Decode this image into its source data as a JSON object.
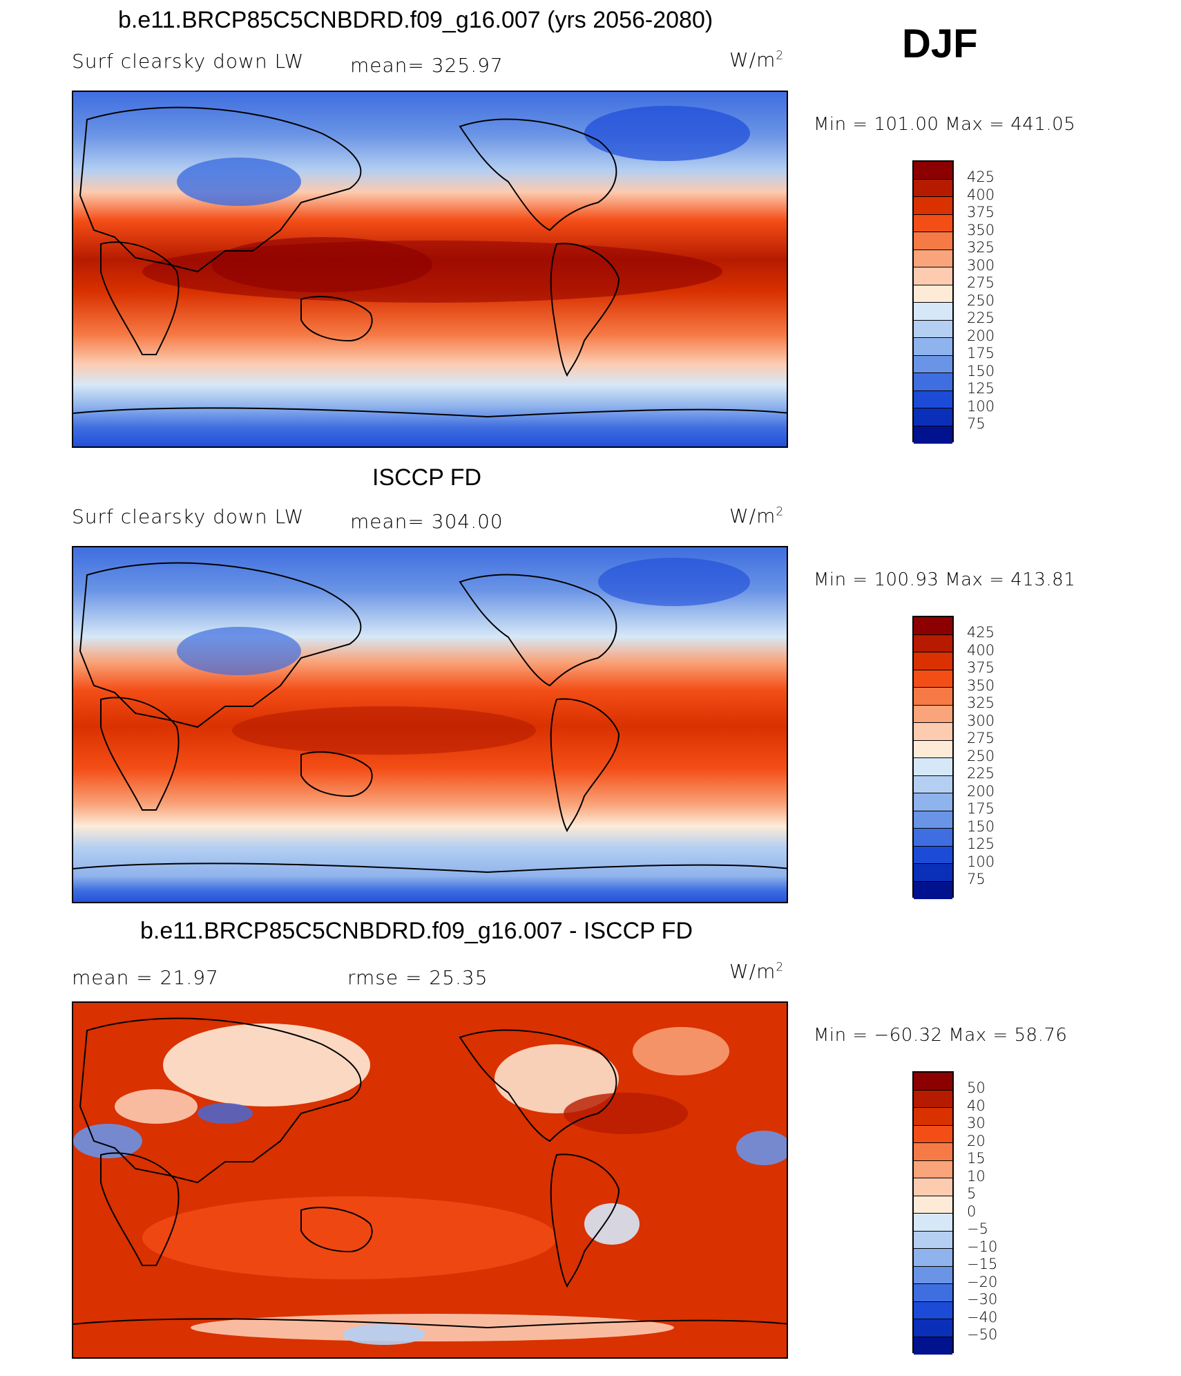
{
  "season": "DJF",
  "colors": {
    "abs_scale": [
      "#8c0000",
      "#b61b00",
      "#d93100",
      "#f44e17",
      "#f67a45",
      "#f9a47a",
      "#fccbb0",
      "#fdebd7",
      "#d6e8f7",
      "#b4cff2",
      "#8fb3ec",
      "#6a94e5",
      "#3f6ee0",
      "#1c4bd8",
      "#0a2fb8",
      "#00128e"
    ],
    "diff_scale": [
      "#8c0000",
      "#b61b00",
      "#d93100",
      "#f44e17",
      "#f67a45",
      "#f9a47a",
      "#fccbb0",
      "#fdebd7",
      "#d6e8f7",
      "#b4cff2",
      "#8fb3ec",
      "#6a94e5",
      "#3f6ee0",
      "#1c4bd8",
      "#0a2fb8",
      "#00128e"
    ]
  },
  "panels": [
    {
      "title": "b.e11.BRCP85C5CNBDRD.f09_g16.007 (yrs 2056-2080)",
      "left_label": "Surf clearsky down LW",
      "center_label": "mean= 325.97",
      "units_base": "W/m",
      "units_exp": "2",
      "minmax": "Min  =  101.00  Max  =  441.05",
      "colorbar_labels": [
        "425",
        "400",
        "375",
        "350",
        "325",
        "300",
        "275",
        "250",
        "225",
        "200",
        "175",
        "150",
        "125",
        "100",
        "75"
      ]
    },
    {
      "title": "ISCCP FD",
      "left_label": "Surf clearsky down LW",
      "center_label": "mean= 304.00",
      "units_base": "W/m",
      "units_exp": "2",
      "minmax": "Min  =  100.93  Max  =  413.81",
      "colorbar_labels": [
        "425",
        "400",
        "375",
        "350",
        "325",
        "300",
        "275",
        "250",
        "225",
        "200",
        "175",
        "150",
        "125",
        "100",
        "75"
      ]
    },
    {
      "title": "b.e11.BRCP85C5CNBDRD.f09_g16.007 - ISCCP FD",
      "left_label": "mean =   21.97",
      "center_label": "rmse =   25.35",
      "units_base": "W/m",
      "units_exp": "2",
      "minmax": "Min  =  −60.32  Max  =    58.76",
      "colorbar_labels": [
        "50",
        "40",
        "30",
        "20",
        "15",
        "10",
        "5",
        "0",
        "−5",
        "−10",
        "−15",
        "−20",
        "−30",
        "−40",
        "−50"
      ]
    }
  ]
}
